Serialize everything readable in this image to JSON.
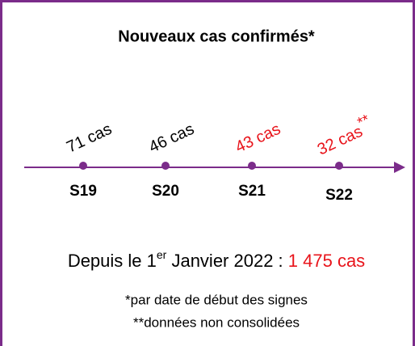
{
  "title": "Nouveaux cas confirmés*",
  "weeks": [
    {
      "label": "S19",
      "cases": "71 cas",
      "color": "#000000"
    },
    {
      "label": "S20",
      "cases": "46 cas",
      "color": "#000000"
    },
    {
      "label": "S21",
      "cases": "43 cas",
      "color": "#e8141b"
    },
    {
      "label": "S22",
      "cases": "32 cas",
      "note": "**",
      "color": "#e8141b"
    }
  ],
  "total": {
    "prefix": "Depuis le 1",
    "sup": "er",
    "middle": " Janvier 2022 : ",
    "value": "1 475 cas",
    "value_color": "#e8141b"
  },
  "footnotes": [
    "*par date de début des signes",
    "**données non consolidées"
  ]
}
